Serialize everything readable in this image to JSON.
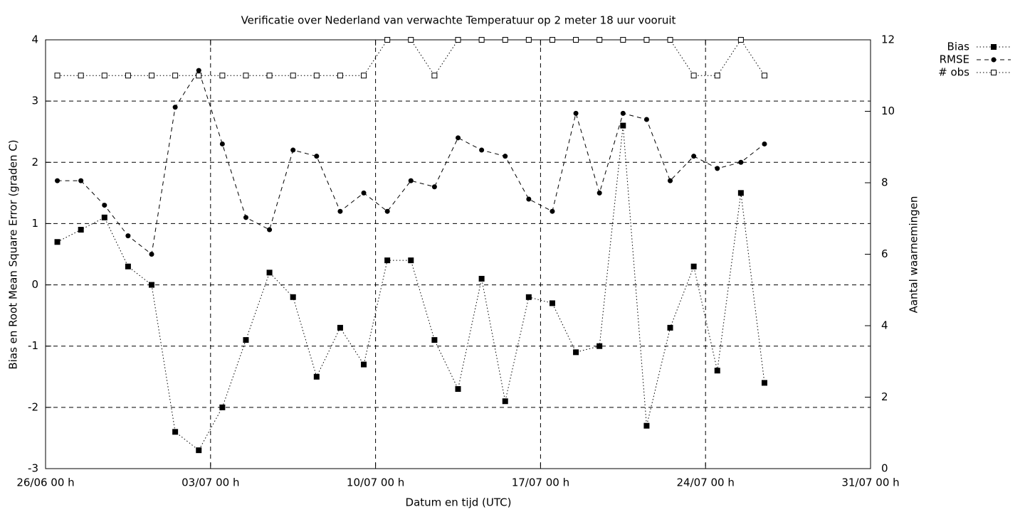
{
  "chart_data": {
    "type": "line",
    "title": "Verificatie over Nederland van verwachte Temperatuur op 2 meter 18 uur vooruit",
    "xlabel": "Datum en tijd (UTC)",
    "ylabel": "Bias en Root Mean Square Error (graden C)",
    "y2label": "Aantal waarnemingen",
    "x": [
      0.5,
      1.5,
      2.5,
      3.5,
      4.5,
      5.5,
      6.5,
      7.5,
      8.5,
      9.5,
      10.5,
      11.5,
      12.5,
      13.5,
      14.5,
      15.5,
      16.5,
      17.5,
      18.5,
      19.5,
      20.5,
      21.5,
      22.5,
      23.5,
      24.5,
      25.5,
      26.5,
      27.5,
      28.5,
      29.5,
      30.5
    ],
    "series": [
      {
        "name": "Bias",
        "color": "#000000",
        "line_style": "dotted",
        "marker": "filled-square",
        "values": [
          0.7,
          0.9,
          1.1,
          0.3,
          0,
          -2.4,
          -2.7,
          -2.0,
          -0.9,
          0.2,
          -0.2,
          -1.5,
          -0.7,
          -1.3,
          0.4,
          0.4,
          -0.9,
          -1.7,
          0.1,
          -1.9,
          -0.2,
          -0.3,
          -1.1,
          -1.0,
          2.6,
          -2.3,
          -0.7,
          0.3,
          -1.4,
          1.5,
          -1.6
        ]
      },
      {
        "name": "RMSE",
        "color": "#000000",
        "line_style": "dashed",
        "marker": "filled-circle",
        "values": [
          1.7,
          1.7,
          1.3,
          0.8,
          0.5,
          2.9,
          3.5,
          2.3,
          1.1,
          0.9,
          2.2,
          2.1,
          1.2,
          1.5,
          1.2,
          1.7,
          1.6,
          2.4,
          2.2,
          2.1,
          1.4,
          1.2,
          2.8,
          1.5,
          2.8,
          2.7,
          1.7,
          2.1,
          1.9,
          2.0,
          2.3
        ]
      },
      {
        "name": "# obs",
        "color": "#000000",
        "line_style": "dotted",
        "marker": "open-square",
        "axis": "y2",
        "values": [
          11,
          11,
          11,
          11,
          11,
          11,
          11,
          11,
          11,
          11,
          11,
          11,
          11,
          11,
          12,
          12,
          11,
          12,
          12,
          12,
          12,
          12,
          12,
          12,
          12,
          12,
          12,
          11,
          11,
          12,
          11
        ]
      }
    ],
    "xlim": [
      0,
      35
    ],
    "xticks": [
      {
        "value": 0,
        "label": "26/06 00 h"
      },
      {
        "value": 7,
        "label": "03/07 00 h"
      },
      {
        "value": 14,
        "label": "10/07 00 h"
      },
      {
        "value": 21,
        "label": "17/07 00 h"
      },
      {
        "value": 28,
        "label": "24/07 00 h"
      },
      {
        "value": 35,
        "label": "31/07 00 h"
      }
    ],
    "ylim": [
      -3,
      4
    ],
    "yticks": [
      -3,
      -2,
      -1,
      0,
      1,
      2,
      3,
      4
    ],
    "y2lim": [
      0,
      12
    ],
    "y2ticks": [
      0,
      2,
      4,
      6,
      8,
      10,
      12
    ],
    "grid": true,
    "legend": "top-right-outside"
  }
}
